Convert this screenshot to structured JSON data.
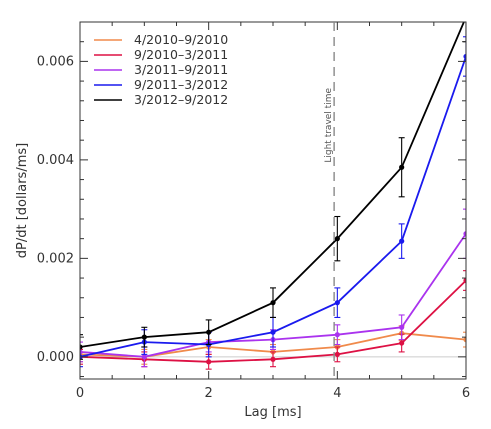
{
  "chart_data": {
    "type": "line",
    "title": "",
    "xlabel": "Lag [ms]",
    "ylabel": "dP/dt [dollars/ms]",
    "xlim": [
      0,
      6
    ],
    "ylim": [
      -0.00045,
      0.0068
    ],
    "xticks": [
      0,
      2,
      4,
      6
    ],
    "xtick_labels": [
      "0",
      "2",
      "4",
      "6"
    ],
    "yticks": [
      0.0,
      0.002,
      0.004,
      0.006
    ],
    "ytick_labels": [
      "0.000",
      "0.002",
      "0.004",
      "0.006"
    ],
    "grid": false,
    "legend_position": "top-left",
    "x": [
      0,
      1,
      2,
      3,
      4,
      5,
      6
    ],
    "series": [
      {
        "name": "4/2010–9/2010",
        "color": "#f08a4b",
        "values": [
          5e-05,
          0.0,
          0.0002,
          0.0001,
          0.0002,
          0.00048,
          0.00035
        ],
        "errors": [
          0.00015,
          0.00015,
          0.00015,
          0.00015,
          0.00015,
          0.00015,
          0.00015
        ]
      },
      {
        "name": "9/2010–3/2011",
        "color": "#dd1144",
        "values": [
          0.0,
          -5e-05,
          -0.0001,
          -5e-05,
          5e-05,
          0.00028,
          0.00155
        ],
        "errors": [
          0.00015,
          0.00015,
          0.00015,
          0.00015,
          0.00015,
          0.00018,
          0.0002
        ]
      },
      {
        "name": "3/2011–9/2011",
        "color": "#aa33ee",
        "values": [
          0.0001,
          0.0,
          0.0003,
          0.00035,
          0.00045,
          0.0006,
          0.0025
        ],
        "errors": [
          0.0002,
          0.0002,
          0.0002,
          0.0002,
          0.0002,
          0.00025,
          0.0005
        ]
      },
      {
        "name": "9/2011–3/2012",
        "color": "#1a1aee",
        "values": [
          0.0,
          0.0003,
          0.00025,
          0.0005,
          0.0011,
          0.00235,
          0.0061
        ],
        "errors": [
          0.0002,
          0.00025,
          0.00025,
          0.0003,
          0.0003,
          0.00035,
          0.0004
        ]
      },
      {
        "name": "3/2012–9/2012",
        "color": "#000000",
        "values": [
          0.0002,
          0.0004,
          0.0005,
          0.0011,
          0.0024,
          0.00385,
          0.0069
        ],
        "errors": [
          0.00025,
          0.0002,
          0.00025,
          0.0003,
          0.00045,
          0.0006,
          0.0005
        ]
      }
    ],
    "annotations": [
      {
        "text": "Light travel time",
        "x": 3.95,
        "style": "dashed-vertical-line"
      }
    ]
  }
}
